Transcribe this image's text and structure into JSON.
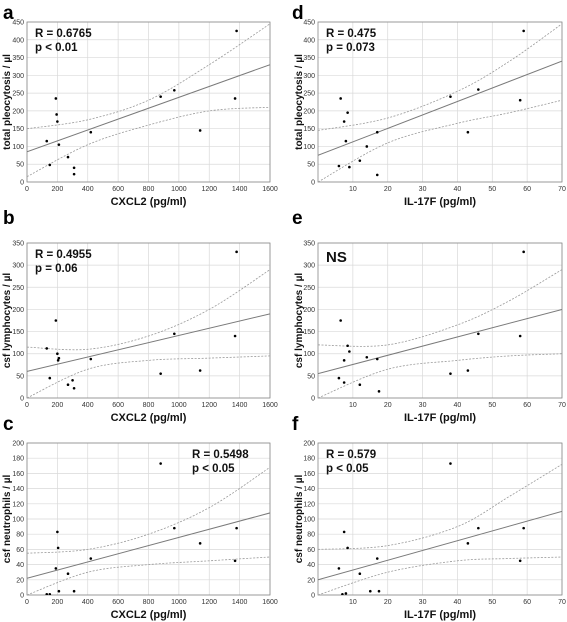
{
  "chart_data": [
    {
      "panel": "a",
      "type": "scatter",
      "xlabel": "CXCL2 (pg/ml)",
      "ylabel": "total pleocytosis / µl",
      "xlim": [
        0,
        1600
      ],
      "ylim": [
        0,
        450
      ],
      "xticks": [
        0,
        200,
        400,
        600,
        800,
        1000,
        1200,
        1400,
        1600
      ],
      "yticks": [
        0,
        50,
        100,
        150,
        200,
        250,
        300,
        350,
        400,
        450
      ],
      "annotations": [
        "R = 0.6765",
        "p < 0.01"
      ],
      "annot_pos": "top-left",
      "points": [
        [
          130,
          115
        ],
        [
          150,
          48
        ],
        [
          190,
          235
        ],
        [
          195,
          190
        ],
        [
          200,
          170
        ],
        [
          210,
          105
        ],
        [
          270,
          70
        ],
        [
          310,
          40
        ],
        [
          310,
          22
        ],
        [
          420,
          140
        ],
        [
          880,
          240
        ],
        [
          970,
          258
        ],
        [
          1140,
          145
        ],
        [
          1370,
          235
        ],
        [
          1380,
          425
        ]
      ],
      "fit": {
        "x0": 0,
        "y0": 85,
        "x1": 1600,
        "y1": 330
      },
      "ci_upper": [
        [
          0,
          150
        ],
        [
          400,
          175
        ],
        [
          800,
          230
        ],
        [
          1200,
          330
        ],
        [
          1600,
          445
        ]
      ],
      "ci_lower": [
        [
          0,
          15
        ],
        [
          400,
          105
        ],
        [
          800,
          160
        ],
        [
          1200,
          200
        ],
        [
          1600,
          210
        ]
      ],
      "grid": true
    },
    {
      "panel": "d",
      "type": "scatter",
      "xlabel": "IL-17F (pg/ml)",
      "ylabel": "total pleocytosis / µl",
      "xlim": [
        0,
        70
      ],
      "ylim": [
        0,
        450
      ],
      "xticks": [
        10,
        20,
        30,
        40,
        50,
        60,
        70
      ],
      "yticks": [
        0,
        50,
        100,
        150,
        200,
        250,
        300,
        350,
        400,
        450
      ],
      "annotations": [
        "R = 0.475",
        "p = 0.073"
      ],
      "annot_pos": "top-left",
      "points": [
        [
          6,
          45
        ],
        [
          6.5,
          235
        ],
        [
          7.5,
          170
        ],
        [
          8,
          115
        ],
        [
          8.5,
          195
        ],
        [
          9,
          42
        ],
        [
          12,
          60
        ],
        [
          14,
          100
        ],
        [
          17,
          140
        ],
        [
          17,
          20
        ],
        [
          38,
          240
        ],
        [
          43,
          140
        ],
        [
          46,
          260
        ],
        [
          58,
          230
        ],
        [
          59,
          425
        ]
      ],
      "fit": {
        "x0": 0,
        "y0": 75,
        "x1": 70,
        "y1": 340
      },
      "ci_upper": [
        [
          0,
          145
        ],
        [
          20,
          180
        ],
        [
          40,
          255
        ],
        [
          55,
          340
        ],
        [
          70,
          445
        ]
      ],
      "ci_lower": [
        [
          0,
          0
        ],
        [
          20,
          110
        ],
        [
          40,
          165
        ],
        [
          55,
          195
        ],
        [
          70,
          230
        ]
      ],
      "grid": true
    },
    {
      "panel": "b",
      "type": "scatter",
      "xlabel": "CXCL2 (pg/ml)",
      "ylabel": "csf lymphocytes / µl",
      "xlim": [
        0,
        1600
      ],
      "ylim": [
        0,
        350
      ],
      "xticks": [
        0,
        200,
        400,
        600,
        800,
        1000,
        1200,
        1400,
        1600
      ],
      "yticks": [
        0,
        50,
        100,
        150,
        200,
        250,
        300,
        350
      ],
      "annotations": [
        "R = 0.4955",
        "p = 0.06"
      ],
      "annot_pos": "top-left",
      "points": [
        [
          130,
          112
        ],
        [
          150,
          45
        ],
        [
          190,
          175
        ],
        [
          200,
          100
        ],
        [
          205,
          85
        ],
        [
          210,
          90
        ],
        [
          270,
          30
        ],
        [
          300,
          40
        ],
        [
          310,
          22
        ],
        [
          420,
          88
        ],
        [
          880,
          55
        ],
        [
          970,
          145
        ],
        [
          1140,
          62
        ],
        [
          1370,
          140
        ],
        [
          1380,
          330
        ]
      ],
      "fit": {
        "x0": 0,
        "y0": 60,
        "x1": 1600,
        "y1": 190
      },
      "ci_upper": [
        [
          0,
          115
        ],
        [
          400,
          110
        ],
        [
          800,
          140
        ],
        [
          1200,
          200
        ],
        [
          1600,
          290
        ]
      ],
      "ci_lower": [
        [
          0,
          0
        ],
        [
          400,
          65
        ],
        [
          800,
          85
        ],
        [
          1200,
          90
        ],
        [
          1600,
          95
        ]
      ],
      "grid": true
    },
    {
      "panel": "e",
      "type": "scatter",
      "xlabel": "IL-17F (pg/ml)",
      "ylabel": "csf lymphocytes / µl",
      "xlim": [
        0,
        70
      ],
      "ylim": [
        0,
        350
      ],
      "xticks": [
        10,
        20,
        30,
        40,
        50,
        60,
        70
      ],
      "yticks": [
        0,
        50,
        100,
        150,
        200,
        250,
        300,
        350
      ],
      "annotations": [
        "NS"
      ],
      "annot_pos": "top-left",
      "points": [
        [
          6,
          45
        ],
        [
          6.5,
          175
        ],
        [
          7.5,
          35
        ],
        [
          7.5,
          85
        ],
        [
          8.5,
          118
        ],
        [
          9,
          105
        ],
        [
          12,
          30
        ],
        [
          14,
          92
        ],
        [
          17,
          88
        ],
        [
          17.5,
          15
        ],
        [
          38,
          55
        ],
        [
          43,
          62
        ],
        [
          46,
          145
        ],
        [
          58,
          140
        ],
        [
          59,
          330
        ]
      ],
      "fit": {
        "x0": 0,
        "y0": 55,
        "x1": 70,
        "y1": 200
      },
      "ci_upper": [
        [
          0,
          120
        ],
        [
          20,
          120
        ],
        [
          40,
          165
        ],
        [
          55,
          220
        ],
        [
          70,
          290
        ]
      ],
      "ci_lower": [
        [
          0,
          0
        ],
        [
          20,
          65
        ],
        [
          40,
          85
        ],
        [
          55,
          95
        ],
        [
          70,
          100
        ]
      ],
      "grid": true
    },
    {
      "panel": "c",
      "type": "scatter",
      "xlabel": "CXCL2 (pg/ml)",
      "ylabel": "csf neutrophils / µl",
      "xlim": [
        0,
        1600
      ],
      "ylim": [
        0,
        200
      ],
      "xticks": [
        0,
        200,
        400,
        600,
        800,
        1000,
        1200,
        1400,
        1600
      ],
      "yticks": [
        0,
        20,
        40,
        60,
        80,
        100,
        120,
        140,
        160,
        180,
        200
      ],
      "annotations": [
        "R = 0.5498",
        "p < 0.05"
      ],
      "annot_pos": "top-right",
      "points": [
        [
          130,
          1
        ],
        [
          150,
          1
        ],
        [
          190,
          35
        ],
        [
          200,
          83
        ],
        [
          205,
          62
        ],
        [
          210,
          5
        ],
        [
          270,
          28
        ],
        [
          310,
          5
        ],
        [
          420,
          48
        ],
        [
          880,
          173
        ],
        [
          970,
          88
        ],
        [
          1140,
          68
        ],
        [
          1370,
          45
        ],
        [
          1380,
          88
        ]
      ],
      "fit": {
        "x0": 0,
        "y0": 22,
        "x1": 1600,
        "y1": 108
      },
      "ci_upper": [
        [
          0,
          55
        ],
        [
          400,
          60
        ],
        [
          800,
          80
        ],
        [
          1200,
          115
        ],
        [
          1600,
          168
        ]
      ],
      "ci_lower": [
        [
          0,
          0
        ],
        [
          400,
          30
        ],
        [
          800,
          40
        ],
        [
          1200,
          45
        ],
        [
          1600,
          50
        ]
      ],
      "grid": true
    },
    {
      "panel": "f",
      "type": "scatter",
      "xlabel": "IL-17F (pg/ml)",
      "ylabel": "csf neutrophils / µl",
      "xlim": [
        0,
        70
      ],
      "ylim": [
        0,
        200
      ],
      "xticks": [
        10,
        20,
        30,
        40,
        50,
        60,
        70
      ],
      "yticks": [
        0,
        20,
        40,
        60,
        80,
        100,
        120,
        140,
        160,
        180,
        200
      ],
      "annotations": [
        "R = 0.579",
        "p < 0.05"
      ],
      "annot_pos": "top-left",
      "points": [
        [
          6,
          35
        ],
        [
          7,
          1
        ],
        [
          7.5,
          83
        ],
        [
          8,
          2
        ],
        [
          8.5,
          62
        ],
        [
          12,
          28
        ],
        [
          15,
          5
        ],
        [
          17,
          48
        ],
        [
          17.5,
          5
        ],
        [
          38,
          173
        ],
        [
          43,
          68
        ],
        [
          46,
          88
        ],
        [
          58,
          45
        ],
        [
          59,
          88
        ]
      ],
      "fit": {
        "x0": 0,
        "y0": 20,
        "x1": 70,
        "y1": 110
      },
      "ci_upper": [
        [
          0,
          60
        ],
        [
          20,
          65
        ],
        [
          40,
          90
        ],
        [
          55,
          130
        ],
        [
          70,
          172
        ]
      ],
      "ci_lower": [
        [
          0,
          0
        ],
        [
          20,
          30
        ],
        [
          40,
          45
        ],
        [
          55,
          48
        ],
        [
          70,
          50
        ]
      ],
      "grid": true
    }
  ],
  "colors": {
    "grid": "#d9d9d9",
    "frame": "#888888",
    "fit": "#7a7a7a",
    "ci": "#9a9a9a",
    "point": "#000000"
  }
}
